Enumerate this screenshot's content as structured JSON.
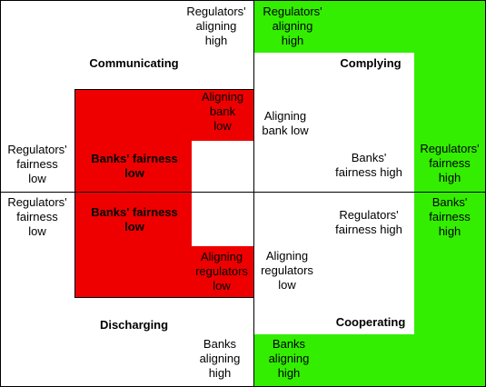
{
  "quadrants": {
    "top_left": "Communicating",
    "top_right": "Complying",
    "bottom_left": "Discharging",
    "bottom_right": "Cooperating"
  },
  "axes": {
    "top": "Regulators'\naligning\nhigh",
    "top_green": "Regulators'\naligning\nhigh",
    "left_upper": "Regulators'\nfairness\nlow",
    "left_lower": "Regulators'\nfairness\nlow",
    "right_upper": "Regulators'\nfairness\nhigh",
    "right_lower": "Banks'\nfairness\nhigh",
    "bottom": "Banks\naligning\nhigh",
    "bottom_green": "Banks\naligning\nhigh"
  },
  "inner": {
    "aligning_bank_low_red": "Aligning\nbank\nlow",
    "banks_fairness_low_upper": "Banks' fairness\nlow",
    "banks_fairness_low_lower": "Banks' fairness\nlow",
    "aligning_regulators_low_red": "Aligning\nregulators\nlow",
    "aligning_bank_low": "Aligning\nbank low",
    "banks_fairness_high": "Banks'\nfairness high",
    "regulators_fairness_high": "Regulators'\nfairness high",
    "aligning_regulators_low": "Aligning\nregulators\nlow"
  },
  "colors": {
    "green": "#33ee00",
    "red": "#ee0000"
  }
}
